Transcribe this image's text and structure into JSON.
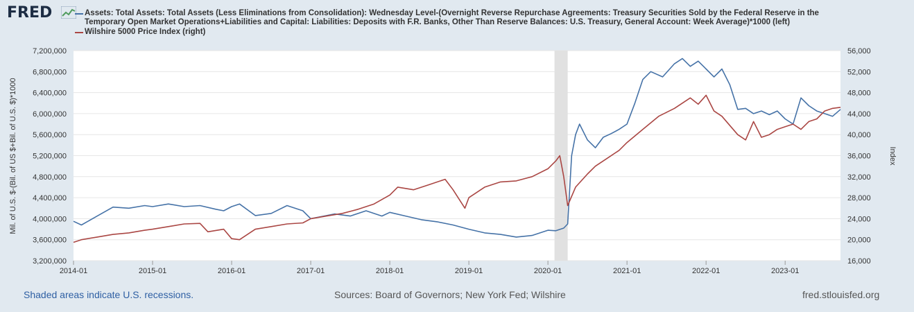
{
  "logo": {
    "text": "FRED",
    "icon": "fred-graph-icon"
  },
  "colors": {
    "left_series": "#4572a7",
    "right_series": "#aa4643",
    "recession": "#e1e1e1",
    "grid": "#e6e6e6",
    "footer_link": "#2e5fa3",
    "footer_text": "#555555"
  },
  "chart_data": {
    "type": "line",
    "legend": [
      {
        "name": "Assets: Total Assets: Total Assets (Less Eliminations from Consolidation): Wednesday Level-(Overnight Reverse Repurchase Agreements: Treasury Securities Sold by the Federal Reserve in the",
        "name_cont": "Temporary Open Market Operations+Liabilities and Capital: Liabilities: Deposits with F.R. Banks, Other Than Reserve Balances: U.S. Treasury, General Account: Week Average)*1000 (left)"
      },
      {
        "name": "Wilshire 5000 Price Index (right)"
      }
    ],
    "ylabel_left": "Mil. of U.S. $-(Bil. of US $+Bil. of U.S. $)*1000",
    "ylabel_right": "Index",
    "x_ticks": [
      "2014-01",
      "2015-01",
      "2016-01",
      "2017-01",
      "2018-01",
      "2019-01",
      "2020-01",
      "2021-01",
      "2022-01",
      "2023-01"
    ],
    "y_left_ticks": [
      "3,200,000",
      "3,600,000",
      "4,000,000",
      "4,400,000",
      "4,800,000",
      "5,200,000",
      "5,600,000",
      "6,000,000",
      "6,400,000",
      "6,800,000",
      "7,200,000"
    ],
    "y_right_ticks": [
      "16,000",
      "20,000",
      "24,000",
      "28,000",
      "32,000",
      "36,000",
      "40,000",
      "44,000",
      "48,000",
      "52,000",
      "56,000"
    ],
    "ylim_left": [
      3200000,
      7200000
    ],
    "ylim_right": [
      16000,
      56000
    ],
    "xlim": [
      2014.0,
      2023.7
    ],
    "recession": [
      2020.083,
      2020.25
    ],
    "series": [
      {
        "axis": "left",
        "x": [
          2014.0,
          2014.1,
          2014.3,
          2014.5,
          2014.7,
          2014.9,
          2015.0,
          2015.2,
          2015.4,
          2015.6,
          2015.8,
          2015.9,
          2016.0,
          2016.1,
          2016.3,
          2016.5,
          2016.7,
          2016.9,
          2017.0,
          2017.2,
          2017.3,
          2017.5,
          2017.7,
          2017.9,
          2018.0,
          2018.2,
          2018.4,
          2018.6,
          2018.8,
          2019.0,
          2019.2,
          2019.4,
          2019.6,
          2019.8,
          2020.0,
          2020.1,
          2020.2,
          2020.25,
          2020.3,
          2020.35,
          2020.4,
          2020.5,
          2020.6,
          2020.7,
          2020.8,
          2020.9,
          2021.0,
          2021.1,
          2021.2,
          2021.3,
          2021.45,
          2021.6,
          2021.7,
          2021.8,
          2021.9,
          2022.0,
          2022.1,
          2022.2,
          2022.3,
          2022.4,
          2022.5,
          2022.6,
          2022.7,
          2022.8,
          2022.9,
          2023.0,
          2023.1,
          2023.2,
          2023.3,
          2023.4,
          2023.5,
          2023.6,
          2023.7
        ],
        "values": [
          3950000,
          3880000,
          4050000,
          4220000,
          4200000,
          4250000,
          4230000,
          4280000,
          4230000,
          4250000,
          4180000,
          4150000,
          4230000,
          4280000,
          4060000,
          4100000,
          4250000,
          4150000,
          4000000,
          4060000,
          4090000,
          4050000,
          4150000,
          4050000,
          4120000,
          4050000,
          3980000,
          3940000,
          3880000,
          3800000,
          3730000,
          3700000,
          3650000,
          3680000,
          3780000,
          3770000,
          3820000,
          3900000,
          5200000,
          5600000,
          5800000,
          5500000,
          5350000,
          5550000,
          5620000,
          5700000,
          5800000,
          6200000,
          6650000,
          6800000,
          6700000,
          6950000,
          7050000,
          6900000,
          7000000,
          6850000,
          6700000,
          6850000,
          6550000,
          6080000,
          6100000,
          6000000,
          6050000,
          5980000,
          6050000,
          5900000,
          5800000,
          6300000,
          6150000,
          6050000,
          6000000,
          5950000,
          6080000
        ]
      },
      {
        "axis": "right",
        "x": [
          2014.0,
          2014.1,
          2014.3,
          2014.5,
          2014.7,
          2014.9,
          2015.0,
          2015.2,
          2015.4,
          2015.6,
          2015.7,
          2015.9,
          2016.0,
          2016.1,
          2016.3,
          2016.5,
          2016.7,
          2016.9,
          2017.0,
          2017.2,
          2017.4,
          2017.6,
          2017.8,
          2018.0,
          2018.1,
          2018.3,
          2018.5,
          2018.7,
          2018.8,
          2018.95,
          2019.0,
          2019.2,
          2019.4,
          2019.6,
          2019.8,
          2020.0,
          2020.1,
          2020.15,
          2020.2,
          2020.25,
          2020.35,
          2020.5,
          2020.6,
          2020.75,
          2020.9,
          2021.0,
          2021.2,
          2021.4,
          2021.6,
          2021.8,
          2021.9,
          2022.0,
          2022.1,
          2022.2,
          2022.4,
          2022.5,
          2022.6,
          2022.7,
          2022.8,
          2022.9,
          2023.0,
          2023.1,
          2023.2,
          2023.3,
          2023.4,
          2023.5,
          2023.6,
          2023.7
        ],
        "values": [
          19500,
          20000,
          20500,
          21000,
          21300,
          21800,
          22000,
          22500,
          23000,
          23100,
          21500,
          22000,
          20200,
          20000,
          22000,
          22500,
          23000,
          23200,
          24000,
          24500,
          25000,
          25800,
          26800,
          28500,
          30000,
          29500,
          30500,
          31500,
          29500,
          26000,
          28000,
          30000,
          31000,
          31200,
          32000,
          33500,
          35000,
          36000,
          32000,
          26500,
          30000,
          32500,
          34000,
          35500,
          37000,
          38500,
          41000,
          43500,
          45000,
          47000,
          45800,
          47500,
          44500,
          43500,
          40000,
          39000,
          42500,
          39500,
          40000,
          41000,
          41500,
          42000,
          41000,
          42500,
          43000,
          44500,
          45000,
          45200
        ]
      }
    ]
  },
  "footer": {
    "recession_note": "Shaded areas indicate U.S. recessions.",
    "sources": "Sources: Board of Governors; New York Fed; Wilshire",
    "site": "fred.stlouisfed.org"
  }
}
